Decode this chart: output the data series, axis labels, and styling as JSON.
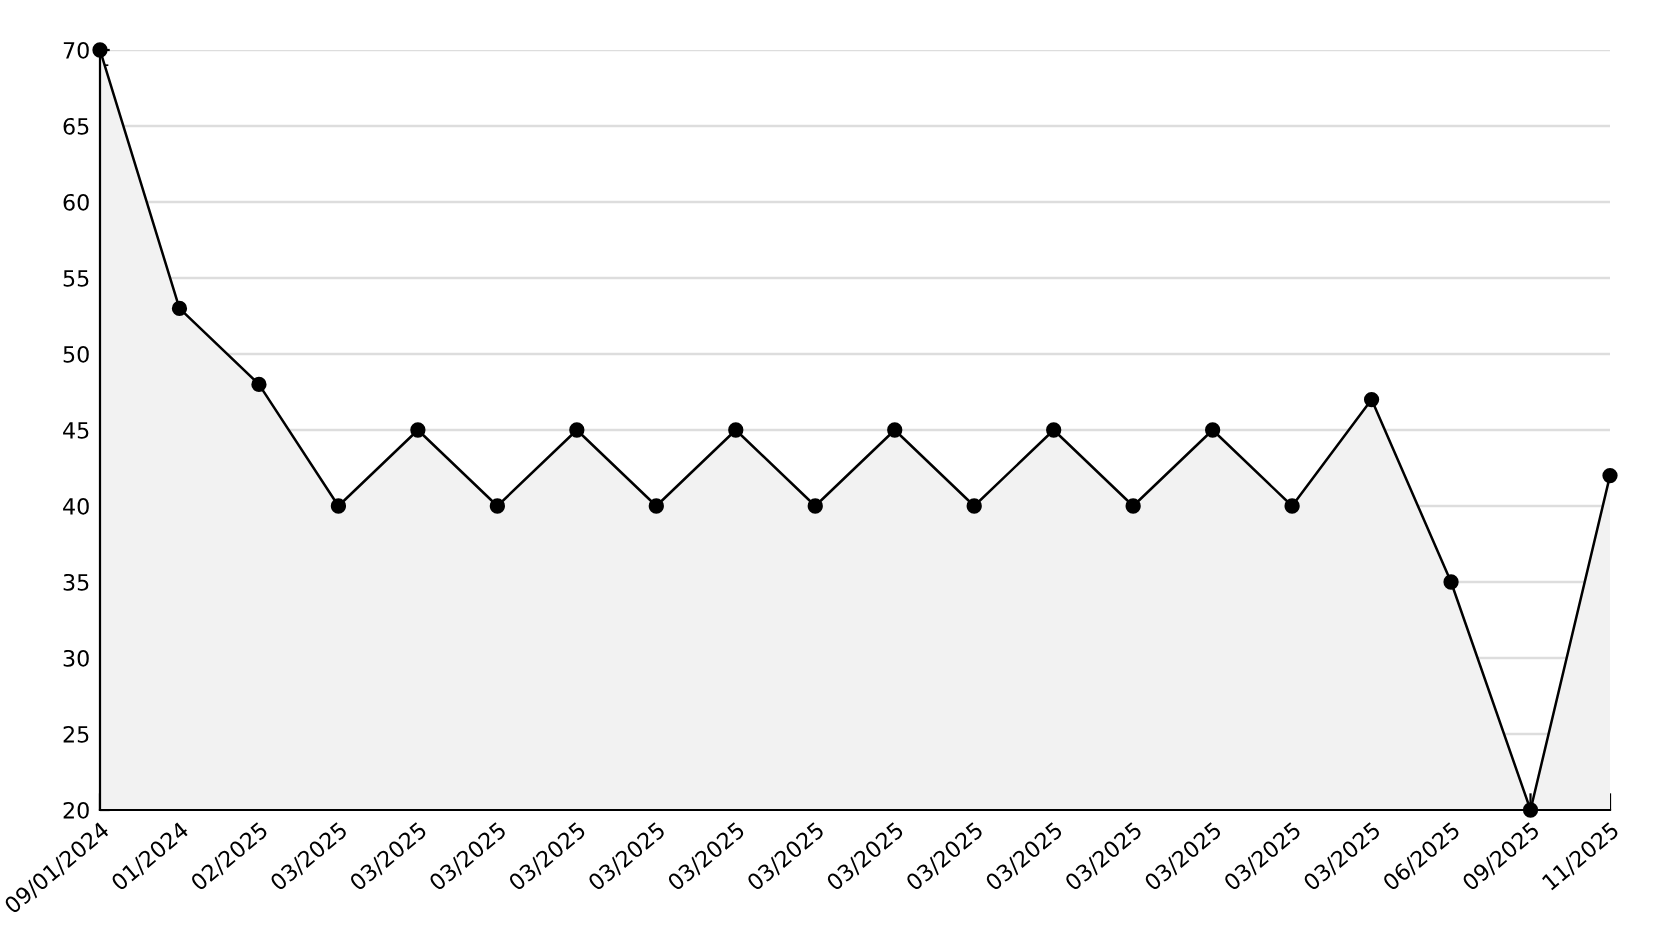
{
  "chart_data": {
    "type": "area",
    "categories": [
      "09/01/2024",
      "01/2024",
      "02/2025",
      "03/2025",
      "03/2025",
      "03/2025",
      "03/2025",
      "03/2025",
      "03/2025",
      "03/2025",
      "03/2025",
      "03/2025",
      "03/2025",
      "03/2025",
      "03/2025",
      "03/2025",
      "03/2025",
      "06/2025",
      "09/2025",
      "11/2025"
    ],
    "series": [
      {
        "color": "#000000",
        "values": [
          70,
          53,
          48,
          40,
          45,
          40,
          45,
          40,
          45,
          40,
          45,
          40,
          45,
          40,
          45,
          40,
          47,
          35,
          20,
          42
        ]
      }
    ],
    "ylim": [
      20,
      70
    ],
    "yticks": [
      20,
      25,
      30,
      35,
      40,
      45,
      50,
      55,
      60,
      65,
      70
    ],
    "grid": "y",
    "marker": "circle",
    "line_style": "solid"
  }
}
